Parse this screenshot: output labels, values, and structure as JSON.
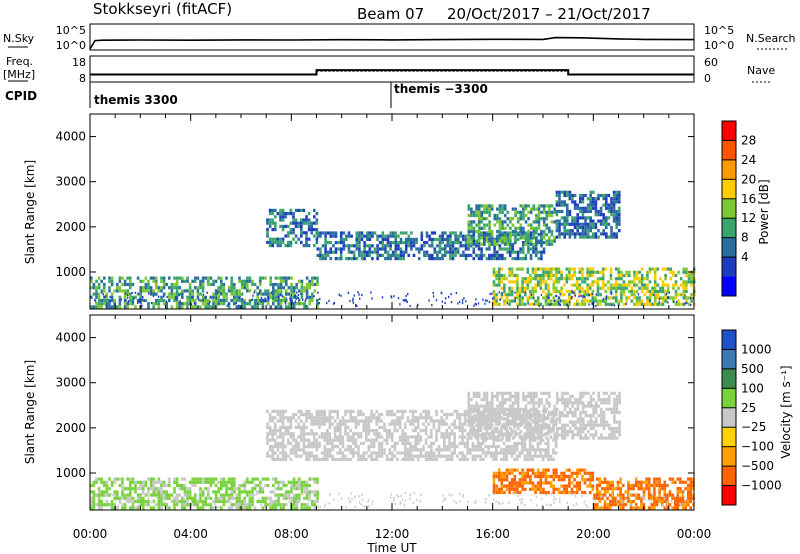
{
  "header": {
    "station": "Stokkseyri (fitACF)",
    "beam": "Beam 07",
    "dates": "20/Oct/2017 – 21/Oct/2017"
  },
  "top_panels": {
    "nsky_label": "N.Sky",
    "nsky_ticks": [
      "10^5",
      "10^0"
    ],
    "nsearch_label": "N.Search",
    "nsearch_ticks": [
      "10^5",
      "10^0"
    ],
    "freq_label_1": "Freq.",
    "freq_label_2": "[MHz]",
    "freq_ticks": [
      "18",
      "8"
    ],
    "nave_label": "Nave",
    "nave_ticks": [
      "60",
      "0"
    ],
    "cpid_label": "CPID",
    "cpid_1": "themis 3300",
    "cpid_2": "themis −3300"
  },
  "x_axis": {
    "label": "Time UT",
    "ticks": [
      "00:00",
      "04:00",
      "08:00",
      "12:00",
      "16:00",
      "20:00",
      "00:00"
    ]
  },
  "power_colorbar": {
    "label": "Power [dB]",
    "ticks": [
      "28",
      "24",
      "20",
      "16",
      "12",
      "8",
      "4"
    ],
    "colors": [
      "#ff0000",
      "#ff5500",
      "#ff9900",
      "#ffcc00",
      "#7dc832",
      "#3aa46e",
      "#2a6e9e",
      "#1e3cbe",
      "#0000ff"
    ]
  },
  "velocity_colorbar": {
    "label": "Velocity [m s⁻¹]",
    "ticks": [
      "1000",
      "500",
      "100",
      "25",
      "−25",
      "−100",
      "−500",
      "−1000"
    ],
    "colors": [
      "#1e50c8",
      "#3c78b4",
      "#3c8c50",
      "#78d23c",
      "#c8c8c8",
      "#ffd200",
      "#ffa000",
      "#ff6400",
      "#ff0000"
    ]
  },
  "chart_data": [
    {
      "type": "line",
      "name": "N.Sky / N.Search",
      "x_unit": "hours UT",
      "x": [
        0,
        0.2,
        0.5,
        2,
        4,
        6,
        8,
        10,
        12,
        14,
        16,
        18,
        18.5,
        19.5,
        21,
        22,
        24
      ],
      "y": [
        1,
        80,
        100,
        110,
        100,
        120,
        110,
        130,
        120,
        140,
        160,
        150,
        400,
        350,
        200,
        150,
        140
      ]
    },
    {
      "type": "line",
      "name": "Freq. / Nave",
      "x_unit": "hours UT",
      "freq_segments": [
        {
          "x": [
            0,
            9
          ],
          "y": 10.5
        },
        {
          "x": [
            9,
            19
          ],
          "y": 12.5
        },
        {
          "x": [
            19,
            24
          ],
          "y": 10.5
        }
      ],
      "nave_segments": [
        {
          "x": [
            0,
            9
          ],
          "y": 14
        },
        {
          "x": [
            9,
            19
          ],
          "y": 24
        },
        {
          "x": [
            19,
            24
          ],
          "y": 14
        }
      ]
    },
    {
      "type": "heatmap",
      "name": "Power",
      "xlabel": "Time UT",
      "ylabel": "Slant Range [km]",
      "xlim": [
        0,
        24
      ],
      "ylim": [
        180,
        4500
      ],
      "yticks": [
        1000,
        2000,
        3000,
        4000
      ],
      "echo_regions": [
        {
          "x": [
            0,
            9
          ],
          "range": [
            250,
            900
          ],
          "level": 12
        },
        {
          "x": [
            7,
            9
          ],
          "range": [
            1600,
            2400
          ],
          "level": 8
        },
        {
          "x": [
            9,
            18
          ],
          "range": [
            1300,
            1900
          ],
          "level": 8
        },
        {
          "x": [
            15,
            18.5
          ],
          "range": [
            1600,
            2500
          ],
          "level": 14
        },
        {
          "x": [
            18.5,
            21
          ],
          "range": [
            1800,
            2800
          ],
          "level": 10
        },
        {
          "x": [
            16,
            24
          ],
          "range": [
            300,
            1100
          ],
          "level": 18
        }
      ]
    },
    {
      "type": "heatmap",
      "name": "Velocity",
      "xlabel": "Time UT",
      "ylabel": "Slant Range [km]",
      "xlim": [
        0,
        24
      ],
      "ylim": [
        180,
        4500
      ],
      "yticks": [
        1000,
        2000,
        3000,
        4000
      ],
      "echo_regions": [
        {
          "x": [
            0,
            9
          ],
          "range": [
            250,
            900
          ],
          "velocity": 60
        },
        {
          "x": [
            7,
            18.5
          ],
          "range": [
            1300,
            2400
          ],
          "velocity": 0
        },
        {
          "x": [
            15,
            21
          ],
          "range": [
            1800,
            2800
          ],
          "velocity": 0
        },
        {
          "x": [
            16,
            20
          ],
          "range": [
            600,
            1100
          ],
          "velocity": -300
        },
        {
          "x": [
            20,
            24
          ],
          "range": [
            250,
            900
          ],
          "velocity": -400
        }
      ]
    }
  ]
}
